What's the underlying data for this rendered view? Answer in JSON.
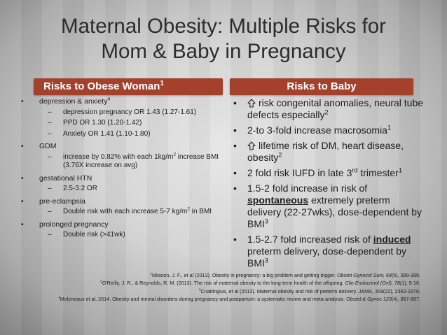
{
  "title_line1": "Maternal Obesity:  Multiple Risks for",
  "title_line2": "Mom & Baby in Pregnancy",
  "left_header": {
    "text": "Risks to Obese Woman",
    "sup": "1"
  },
  "right_header": "Risks to Baby",
  "colors": {
    "header_bg": "#a4412d",
    "header_text": "#ffffff"
  },
  "woman_risks": [
    {
      "label": "depression & anxiety",
      "sup": "4",
      "subs": [
        "depression pregnancy  OR 1.43 (1.27-1.61)",
        "PPD  OR 1.30 (1.20-1.42)",
        "Anxiety  OR 1.41 (1.10-1.80)"
      ]
    },
    {
      "label": "GDM",
      "subs_rich": [
        {
          "a": "increase by 0.82% with each 1kg/m",
          "sup": "2",
          "b": " increase BMI (3.76X increase on avg)"
        }
      ]
    },
    {
      "label": "gestational HTN",
      "subs": [
        "2.5-3.2 OR"
      ]
    },
    {
      "label": "pre-eclampsia",
      "subs_rich": [
        {
          "a": "Double risk with each increase 5-7 kg/m",
          "sup": "2",
          "b": " in BMI"
        }
      ]
    },
    {
      "label": "prolonged pregnancy",
      "subs": [
        "Double risk (>41wk)"
      ]
    }
  ],
  "bullet_char": "•",
  "dash_char": "–",
  "baby_risks": {
    "b1": {
      "a": "risk congenital anomalies, neural tube defects especially",
      "sup": "2",
      "icon": "up-arrow-icon"
    },
    "b2": {
      "a": "2-to 3-fold increase macrosomia",
      "sup": "1"
    },
    "b3": {
      "a": "lifetime risk of DM, heart disease, obesity",
      "sup": "2",
      "icon": "up-arrow-icon"
    },
    "b4": {
      "a": "2 fold risk IUFD in late 3",
      "sup_mid": "rd",
      "b": " trimester",
      "sup": "1"
    },
    "b5": {
      "a": "1.5-2 fold increase in risk of ",
      "bold": "spontaneous",
      "b": " extremely preterm delivery (22-27wks), dose-dependent by BMI",
      "sup": "3"
    },
    "b6": {
      "a": "1.5-2.7 fold increased risk of ",
      "bold": "induced",
      "b": " preterm delivery, dose-dependent by BMI",
      "sup": "3"
    }
  },
  "references": [
    {
      "num": "1",
      "text": "Mission, J. F., et al (2013). Obesity in pregnancy: a big problem and getting bigger. ",
      "journal": "Obstet Gynecol Surv, 68",
      "rest": "(5), 389-399."
    },
    {
      "num": "2",
      "text": "O'Reilly, J. R., & Reynolds, R. M. (2013). The risk of maternal obesity to the long-term health of the offspring. ",
      "journal": "Clin Endocrinol (Oxf), 78",
      "rest": "(1), 9-16."
    },
    {
      "num": "3",
      "text": "Cnattingius, et al (2013). Maternal obesity and risk of preterm delivery. ",
      "journal": "JAMA, 309",
      "rest": "(22), 2362-2370."
    },
    {
      "num": "4",
      "text": "Molyneaux et al, 2014.  Obesity and mental disorders during pregnancy and postpartum:  a systematic review and meta-analysis.  ",
      "journal": "Obstet & Gynec 123",
      "rest": "(4), 857-867."
    }
  ]
}
